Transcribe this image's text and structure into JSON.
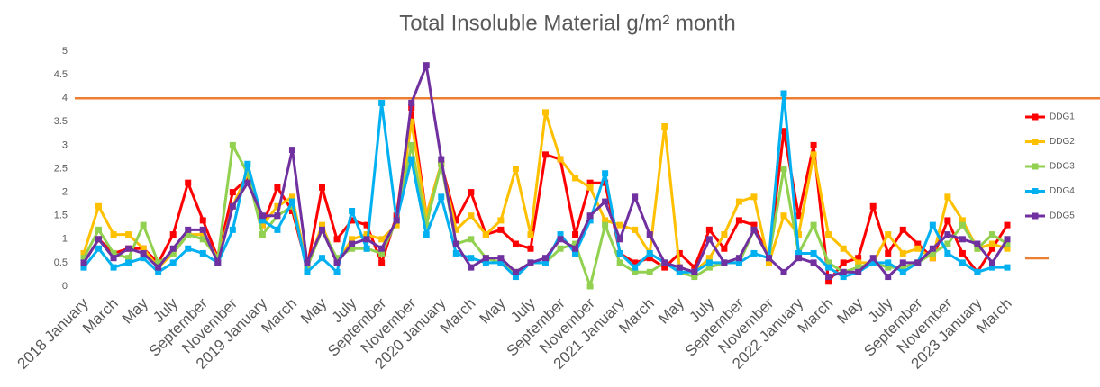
{
  "chart_data": {
    "type": "line",
    "title": "Total Insoluble Material g/m² month",
    "categories": [
      "2018 January",
      null,
      "March",
      null,
      "May",
      null,
      "July",
      null,
      "September",
      null,
      "November",
      null,
      "2019 January",
      null,
      "March",
      null,
      "May",
      null,
      "July",
      null,
      "September",
      null,
      "November",
      null,
      "2020 January",
      null,
      "March",
      null,
      "May",
      null,
      "July",
      null,
      "September",
      null,
      "November",
      null,
      "2021 January",
      null,
      "March",
      null,
      "May",
      null,
      "July",
      null,
      "September",
      null,
      "November",
      null,
      "2022 January",
      null,
      "March",
      null,
      "May",
      null,
      "July",
      null,
      "September",
      null,
      "November",
      null,
      "2023 January",
      null,
      "March"
    ],
    "series": [
      {
        "name": "DDG1",
        "color": "#ff0000",
        "values": [
          0.5,
          1.0,
          0.7,
          0.8,
          0.8,
          0.5,
          1.1,
          2.2,
          1.4,
          0.6,
          2.0,
          2.3,
          1.3,
          2.1,
          1.6,
          0.4,
          2.1,
          1.0,
          1.4,
          1.3,
          0.5,
          1.5,
          3.8,
          1.5,
          2.6,
          1.4,
          2.0,
          1.1,
          1.2,
          0.9,
          0.8,
          2.8,
          2.7,
          1.1,
          2.2,
          2.2,
          0.7,
          0.5,
          0.6,
          0.4,
          0.7,
          0.4,
          1.2,
          0.8,
          1.4,
          1.3,
          0.6,
          3.3,
          1.5,
          3.0,
          0.1,
          0.5,
          0.6,
          1.7,
          0.7,
          1.2,
          0.9,
          0.6,
          1.4,
          0.7,
          0.3,
          0.8,
          1.3
        ]
      },
      {
        "name": "DDG2",
        "color": "#ffc000",
        "values": [
          0.7,
          1.7,
          1.1,
          1.1,
          0.8,
          0.4,
          0.7,
          1.1,
          1.1,
          0.6,
          1.7,
          2.4,
          1.3,
          1.7,
          1.9,
          0.4,
          1.3,
          0.5,
          1.0,
          1.1,
          1.0,
          1.3,
          3.5,
          1.5,
          2.6,
          1.2,
          1.5,
          1.1,
          1.4,
          2.5,
          1.1,
          3.7,
          2.7,
          2.3,
          2.1,
          1.4,
          1.3,
          1.2,
          0.7,
          3.4,
          0.4,
          0.3,
          0.6,
          1.1,
          1.8,
          1.9,
          0.5,
          1.5,
          1.1,
          2.8,
          1.1,
          0.8,
          0.5,
          0.5,
          1.1,
          0.7,
          0.8,
          0.6,
          1.9,
          1.4,
          0.8,
          0.9,
          0.8
        ]
      },
      {
        "name": "DDG3",
        "color": "#92d050",
        "values": [
          0.6,
          1.2,
          0.7,
          0.6,
          1.3,
          0.5,
          0.7,
          1.1,
          1.0,
          0.6,
          3.0,
          2.4,
          1.1,
          1.5,
          1.7,
          0.4,
          1.2,
          0.6,
          0.8,
          0.8,
          0.7,
          1.4,
          3.0,
          1.3,
          2.6,
          0.9,
          1.0,
          0.6,
          0.5,
          0.3,
          0.5,
          0.5,
          0.8,
          0.9,
          0.0,
          1.3,
          0.5,
          0.3,
          0.3,
          0.5,
          0.3,
          0.2,
          0.4,
          0.5,
          0.5,
          1.2,
          0.6,
          2.5,
          0.7,
          1.3,
          0.5,
          0.3,
          0.4,
          0.5,
          0.4,
          0.4,
          0.5,
          0.7,
          0.9,
          1.3,
          0.8,
          1.1,
          0.9
        ]
      },
      {
        "name": "DDG4",
        "color": "#00b0f0",
        "values": [
          0.4,
          0.8,
          0.4,
          0.5,
          0.6,
          0.3,
          0.5,
          0.8,
          0.7,
          0.5,
          1.2,
          2.6,
          1.4,
          1.2,
          1.8,
          0.3,
          0.6,
          0.3,
          1.6,
          0.8,
          3.9,
          1.4,
          2.7,
          1.1,
          1.9,
          0.7,
          0.6,
          0.5,
          0.5,
          0.2,
          0.5,
          0.5,
          1.1,
          0.7,
          1.4,
          2.4,
          0.7,
          0.4,
          0.7,
          0.5,
          0.3,
          0.3,
          0.5,
          0.5,
          0.5,
          0.7,
          0.6,
          4.1,
          0.7,
          0.7,
          0.4,
          0.2,
          0.3,
          0.5,
          0.5,
          0.3,
          0.5,
          1.3,
          0.7,
          0.5,
          0.3,
          0.4,
          0.4
        ]
      },
      {
        "name": "DDG5",
        "color": "#7030a0",
        "values": [
          0.5,
          1.0,
          0.6,
          0.8,
          0.7,
          0.4,
          0.8,
          1.2,
          1.2,
          0.5,
          1.7,
          2.2,
          1.5,
          1.5,
          2.9,
          0.5,
          1.2,
          0.5,
          0.9,
          1.0,
          0.8,
          1.4,
          3.9,
          4.7,
          2.7,
          0.9,
          0.4,
          0.6,
          0.6,
          0.3,
          0.5,
          0.6,
          1.0,
          0.8,
          1.5,
          1.8,
          1.0,
          1.9,
          1.1,
          0.5,
          0.4,
          0.3,
          1.0,
          0.5,
          0.6,
          1.2,
          0.6,
          0.3,
          0.6,
          0.5,
          0.2,
          0.3,
          0.3,
          0.6,
          0.2,
          0.5,
          0.5,
          0.8,
          1.1,
          1.0,
          0.9,
          0.5,
          1.0
        ]
      }
    ],
    "reference_line": {
      "value": 4,
      "color": "#ed7d31"
    },
    "ylim": [
      0,
      5
    ],
    "yticks": [
      0,
      0.5,
      1,
      1.5,
      2,
      2.5,
      3,
      3.5,
      4,
      4.5,
      5
    ],
    "grid": false,
    "legend": "right"
  }
}
